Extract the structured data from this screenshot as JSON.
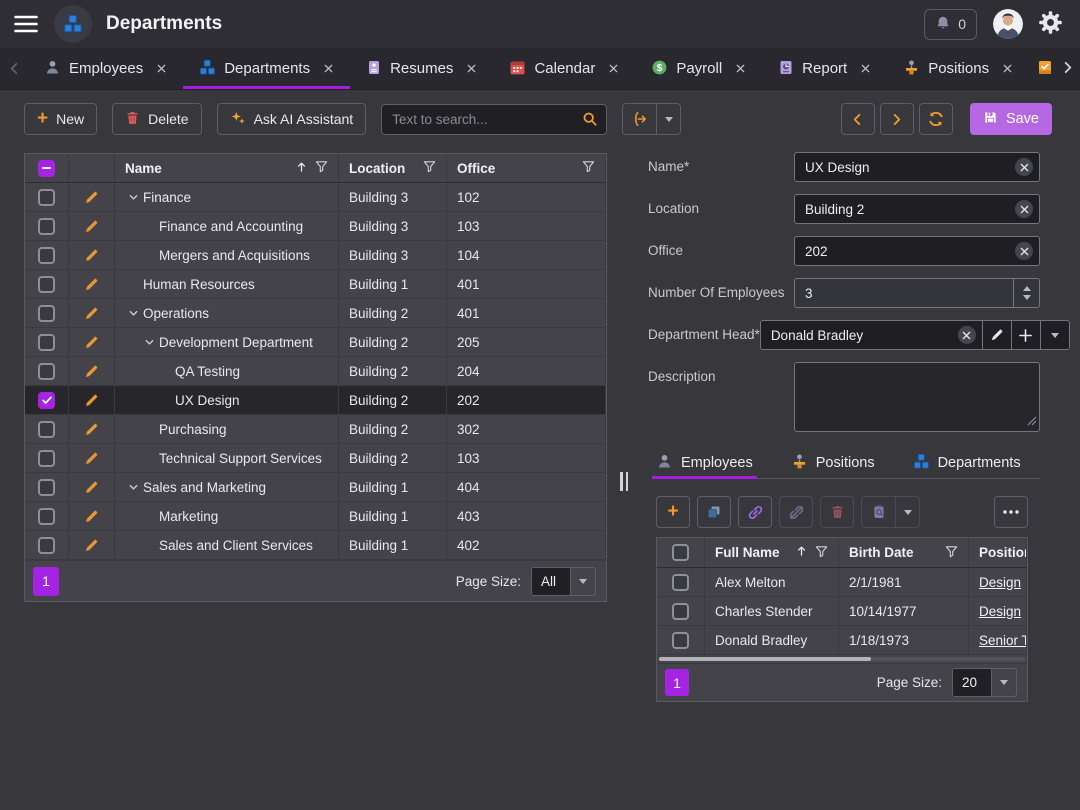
{
  "colors": {
    "accent": "#ef9b2e",
    "purple": "#a524e4",
    "save_purple": "#b668e2"
  },
  "topbar": {
    "title": "Departments",
    "notification_count": "0"
  },
  "tabstrip": {
    "tabs": [
      {
        "label": "Employees",
        "icon": "person",
        "active": false
      },
      {
        "label": "Departments",
        "icon": "departments",
        "active": true
      },
      {
        "label": "Resumes",
        "icon": "resume",
        "active": false
      },
      {
        "label": "Calendar",
        "icon": "calendar",
        "active": false
      },
      {
        "label": "Payroll",
        "icon": "payroll",
        "active": false
      },
      {
        "label": "Report",
        "icon": "report",
        "active": false
      },
      {
        "label": "Positions",
        "icon": "positions",
        "active": false
      }
    ]
  },
  "toolbar": {
    "new_label": "New",
    "delete_label": "Delete",
    "ai_label": "Ask AI Assistant",
    "search_placeholder": "Text to search..."
  },
  "left_grid": {
    "columns": {
      "name": "Name",
      "location": "Location",
      "office": "Office"
    },
    "rows": [
      {
        "name": "Finance",
        "location": "Building 3",
        "office": "102",
        "level": 0,
        "expanded": true,
        "selected": false
      },
      {
        "name": "Finance and Accounting",
        "location": "Building 3",
        "office": "103",
        "level": 1,
        "expanded": false,
        "selected": false
      },
      {
        "name": "Mergers and Acquisitions",
        "location": "Building 3",
        "office": "104",
        "level": 1,
        "expanded": false,
        "selected": false
      },
      {
        "name": "Human Resources",
        "location": "Building 1",
        "office": "401",
        "level": 0,
        "expanded": false,
        "selected": false
      },
      {
        "name": "Operations",
        "location": "Building 2",
        "office": "401",
        "level": 0,
        "expanded": true,
        "selected": false
      },
      {
        "name": "Development Department",
        "location": "Building 2",
        "office": "205",
        "level": 1,
        "expanded": true,
        "selected": false
      },
      {
        "name": "QA Testing",
        "location": "Building 2",
        "office": "204",
        "level": 2,
        "expanded": false,
        "selected": false
      },
      {
        "name": "UX Design",
        "location": "Building 2",
        "office": "202",
        "level": 2,
        "expanded": false,
        "selected": true
      },
      {
        "name": "Purchasing",
        "location": "Building 2",
        "office": "302",
        "level": 1,
        "expanded": false,
        "selected": false
      },
      {
        "name": "Technical Support Services",
        "location": "Building 2",
        "office": "103",
        "level": 1,
        "expanded": false,
        "selected": false
      },
      {
        "name": "Sales and Marketing",
        "location": "Building 1",
        "office": "404",
        "level": 0,
        "expanded": true,
        "selected": false
      },
      {
        "name": "Marketing",
        "location": "Building 1",
        "office": "403",
        "level": 1,
        "expanded": false,
        "selected": false
      },
      {
        "name": "Sales and Client Services",
        "location": "Building 1",
        "office": "402",
        "level": 1,
        "expanded": false,
        "selected": false
      }
    ],
    "pager": {
      "page": "1",
      "page_size_label": "Page Size:",
      "page_size": "All"
    }
  },
  "detail_nav": {
    "save_label": "Save"
  },
  "form": {
    "name": {
      "label": "Name*",
      "value": "UX Design"
    },
    "location": {
      "label": "Location",
      "value": "Building 2"
    },
    "office": {
      "label": "Office",
      "value": "202"
    },
    "employee_count": {
      "label": "Number Of Employees",
      "value": "3"
    },
    "department_head": {
      "label": "Department Head*",
      "value": "Donald Bradley"
    },
    "description": {
      "label": "Description",
      "value": ""
    }
  },
  "detail": {
    "tabs": [
      {
        "label": "Employees",
        "icon": "person",
        "active": true
      },
      {
        "label": "Positions",
        "icon": "positions",
        "active": false
      },
      {
        "label": "Departments",
        "icon": "departments",
        "active": false
      }
    ],
    "grid": {
      "columns": {
        "full_name": "Full Name",
        "birth_date": "Birth Date",
        "position": "Position"
      },
      "rows": [
        {
          "full_name": "Alex Melton",
          "birth_date": "2/1/1981",
          "position": "Design"
        },
        {
          "full_name": "Charles Stender",
          "birth_date": "10/14/1977",
          "position": "Design"
        },
        {
          "full_name": "Donald Bradley",
          "birth_date": "1/18/1973",
          "position": "Senior T"
        }
      ]
    },
    "pager": {
      "page": "1",
      "page_size_label": "Page Size:",
      "page_size": "20"
    }
  }
}
